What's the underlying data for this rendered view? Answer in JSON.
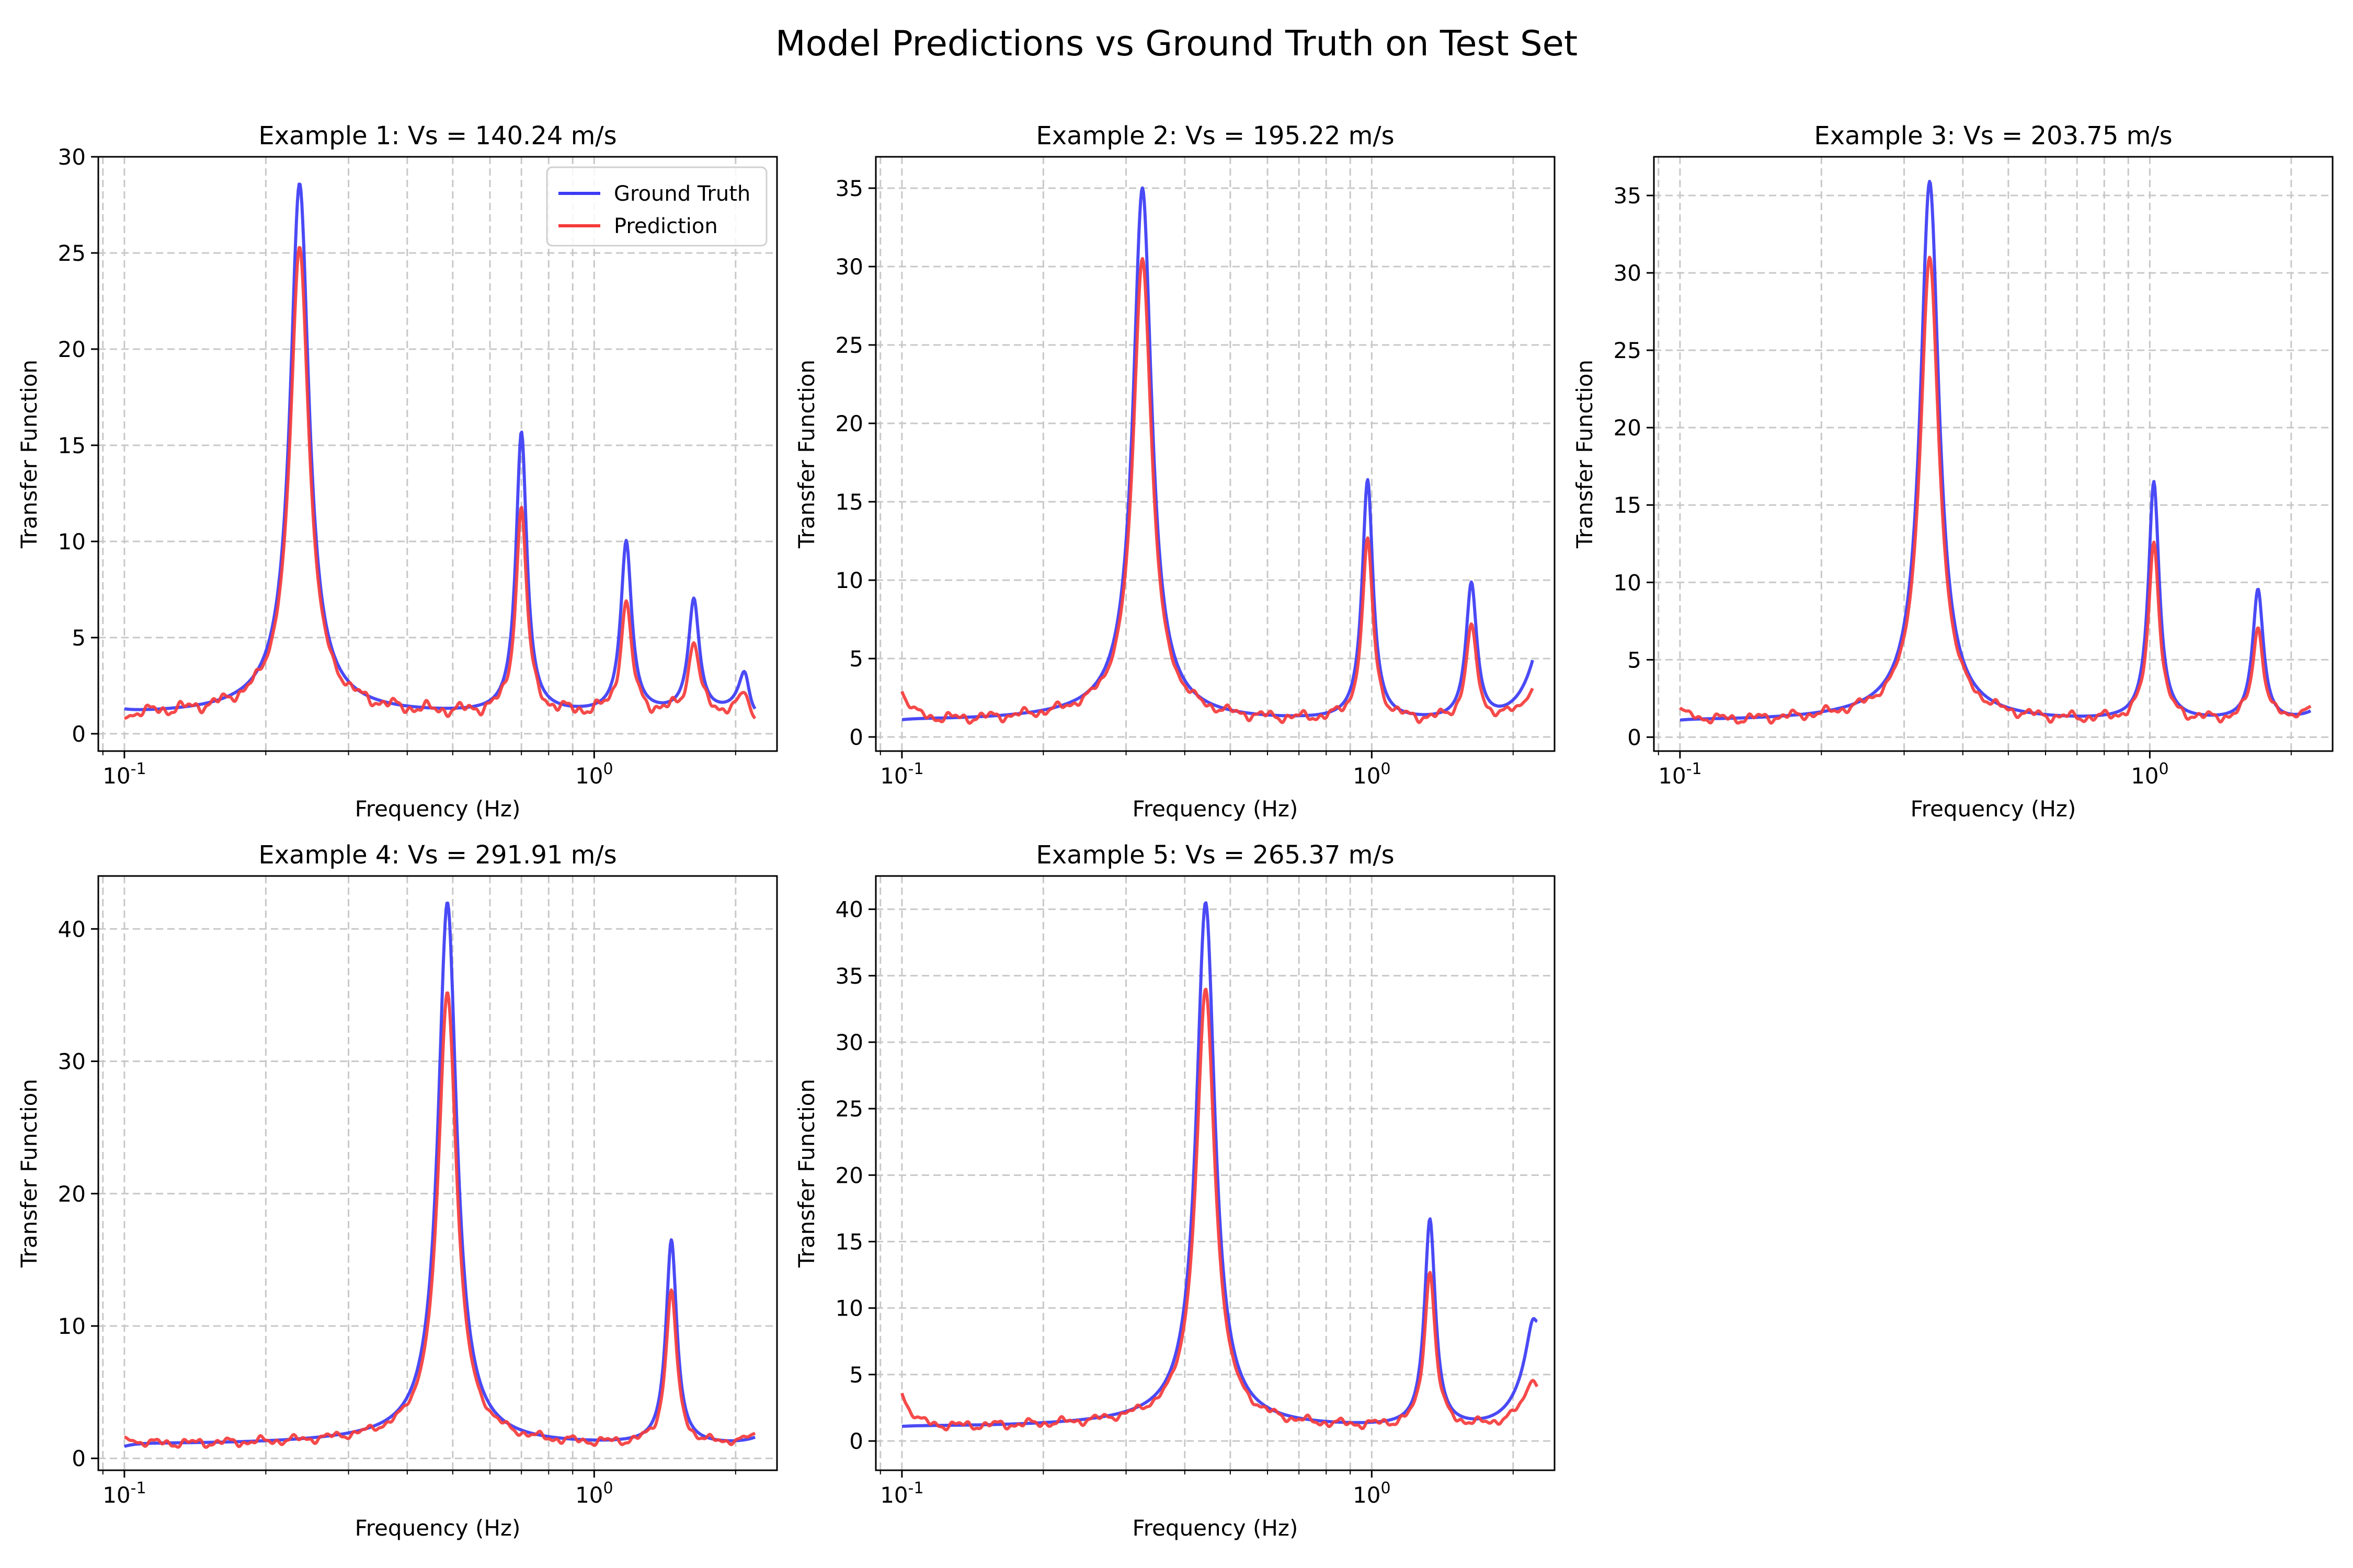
{
  "figure": {
    "title": "Model Predictions vs Ground Truth on Test Set"
  },
  "colors": {
    "ground_truth": "#3b3bf5",
    "prediction": "#f53b3b",
    "grid": "#c8c8c8",
    "axes": "#000000"
  },
  "chart_data": [
    {
      "type": "line",
      "title": "Example 1: Vs = 140.24 m/s",
      "xlabel": "Frequency (Hz)",
      "ylabel": "Transfer Function",
      "xscale": "log",
      "xlim": [
        0.088,
        2.45
      ],
      "ylim": [
        -0.9,
        30
      ],
      "yticks": [
        0,
        5,
        10,
        15,
        20,
        25,
        30
      ],
      "xticks": [
        "10^-1",
        "10^0"
      ],
      "grid": true,
      "legend": {
        "location": "upper right",
        "entries": [
          "Ground Truth",
          "Prediction"
        ]
      },
      "f0": 0.236,
      "peaks": {
        "ground_truth": [
          {
            "f": 0.236,
            "a": 28.6
          },
          {
            "f": 0.7,
            "a": 15.6
          },
          {
            "f": 1.17,
            "a": 9.9
          },
          {
            "f": 1.63,
            "a": 7.0
          },
          {
            "f": 2.1,
            "a": 5.3
          }
        ],
        "prediction": [
          {
            "f": 0.236,
            "a": 25.3
          },
          {
            "f": 0.7,
            "a": 11.7
          },
          {
            "f": 1.17,
            "a": 6.8
          },
          {
            "f": 1.63,
            "a": 4.8
          },
          {
            "f": 2.1,
            "a": 3.6
          }
        ]
      },
      "f_end": 2.2,
      "start_values": {
        "ground_truth": 1.3,
        "prediction": 0.8
      },
      "end_values": {
        "ground_truth": 1.3,
        "prediction": 0.8
      }
    },
    {
      "type": "line",
      "title": "Example 2: Vs = 195.22 m/s",
      "xlabel": "Frequency (Hz)",
      "ylabel": "Transfer Function",
      "xscale": "log",
      "xlim": [
        0.088,
        2.45
      ],
      "ylim": [
        -0.9,
        37
      ],
      "yticks": [
        0,
        5,
        10,
        15,
        20,
        25,
        30,
        35
      ],
      "xticks": [
        "10^-1",
        "10^0"
      ],
      "grid": true,
      "f0": 0.325,
      "peaks": {
        "ground_truth": [
          {
            "f": 0.325,
            "a": 35.0
          },
          {
            "f": 0.98,
            "a": 16.3
          },
          {
            "f": 1.63,
            "a": 9.9
          }
        ],
        "prediction": [
          {
            "f": 0.325,
            "a": 30.5
          },
          {
            "f": 0.98,
            "a": 12.6
          },
          {
            "f": 1.63,
            "a": 7.2
          }
        ]
      },
      "f_end": 2.2,
      "start_values": {
        "ground_truth": 1.1,
        "prediction": 2.9
      },
      "end_values": {
        "ground_truth": 4.9,
        "prediction": 3.1
      }
    },
    {
      "type": "line",
      "title": "Example 3: Vs = 203.75 m/s",
      "xlabel": "Frequency (Hz)",
      "ylabel": "Transfer Function",
      "xscale": "log",
      "xlim": [
        0.088,
        2.45
      ],
      "ylim": [
        -0.9,
        37.5
      ],
      "yticks": [
        0,
        5,
        10,
        15,
        20,
        25,
        30,
        35
      ],
      "xticks": [
        "10^-1",
        "10^0"
      ],
      "grid": true,
      "f0": 0.34,
      "peaks": {
        "ground_truth": [
          {
            "f": 0.34,
            "a": 35.9
          },
          {
            "f": 1.02,
            "a": 16.4
          },
          {
            "f": 1.7,
            "a": 9.8
          }
        ],
        "prediction": [
          {
            "f": 0.34,
            "a": 31.0
          },
          {
            "f": 1.02,
            "a": 12.5
          },
          {
            "f": 1.7,
            "a": 7.2
          }
        ]
      },
      "f_end": 2.2,
      "start_values": {
        "ground_truth": 1.1,
        "prediction": 1.9
      },
      "end_values": {
        "ground_truth": 1.7,
        "prediction": 2.0
      }
    },
    {
      "type": "line",
      "title": "Example 4: Vs = 291.91 m/s",
      "xlabel": "Frequency (Hz)",
      "ylabel": "Transfer Function",
      "xscale": "log",
      "xlim": [
        0.088,
        2.45
      ],
      "ylim": [
        -0.9,
        44
      ],
      "yticks": [
        0,
        10,
        20,
        30,
        40
      ],
      "xticks": [
        "10^-1",
        "10^0"
      ],
      "grid": true,
      "f0": 0.487,
      "peaks": {
        "ground_truth": [
          {
            "f": 0.487,
            "a": 42.0
          },
          {
            "f": 1.46,
            "a": 16.5
          }
        ],
        "prediction": [
          {
            "f": 0.487,
            "a": 35.2
          },
          {
            "f": 1.46,
            "a": 12.7
          }
        ]
      },
      "f_end": 2.2,
      "start_values": {
        "ground_truth": 0.9,
        "prediction": 1.6
      },
      "end_values": {
        "ground_truth": 1.6,
        "prediction": 1.9
      }
    },
    {
      "type": "line",
      "title": "Example 5: Vs = 265.37 m/s",
      "xlabel": "Frequency (Hz)",
      "ylabel": "Transfer Function",
      "xscale": "log",
      "xlim": [
        0.088,
        2.45
      ],
      "ylim": [
        -2.2,
        42.5
      ],
      "yticks": [
        0,
        5,
        10,
        15,
        20,
        25,
        30,
        35,
        40
      ],
      "xticks": [
        "10^-1",
        "10^0"
      ],
      "grid": true,
      "f0": 0.443,
      "peaks": {
        "ground_truth": [
          {
            "f": 0.443,
            "a": 40.5
          },
          {
            "f": 1.33,
            "a": 16.6
          },
          {
            "f": 2.22,
            "a": 10.1
          }
        ],
        "prediction": [
          {
            "f": 0.443,
            "a": 34.0
          },
          {
            "f": 1.33,
            "a": 12.6
          },
          {
            "f": 2.22,
            "a": 6.4
          }
        ]
      },
      "f_end": 2.25,
      "start_values": {
        "ground_truth": 1.1,
        "prediction": 3.6
      },
      "end_values": {
        "ground_truth": 9.0,
        "prediction": 4.1
      }
    }
  ]
}
